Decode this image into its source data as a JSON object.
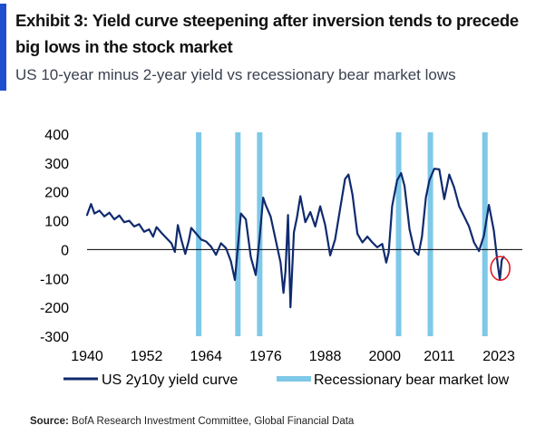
{
  "header": {
    "title_line1": "Exhibit 3: Yield curve steepening after inversion tends to precede",
    "title_line2": "big lows in the stock market",
    "subtitle": "US 10-year minus 2-year yield vs recessionary bear market lows"
  },
  "footer": {
    "source_label": "Source:",
    "source_text": "BofA Research Investment Committee, Global Financial Data"
  },
  "colors": {
    "accent": "#1f4fcf",
    "series_line": "#0f2a6e",
    "bear_lows": "#7ec8e8",
    "highlight_circle": "#e11b22"
  },
  "chart_data": {
    "type": "line",
    "title": "Exhibit 3: Yield curve steepening after inversion tends to precede big lows in the stock market",
    "subtitle": "US 10-year minus 2-year yield vs recessionary bear market lows",
    "xlabel": "",
    "ylabel": "",
    "xlim": [
      1940,
      2025
    ],
    "ylim": [
      -300,
      400
    ],
    "x_ticks": [
      1940,
      1952,
      1964,
      1976,
      1988,
      2000,
      2011,
      2023
    ],
    "y_ticks": [
      400,
      300,
      200,
      100,
      0,
      -100,
      -200,
      -300
    ],
    "grid": false,
    "legend_position": "bottom",
    "series": [
      {
        "name": "US 2y10y yield curve",
        "kind": "line",
        "points": [
          [
            1940,
            120
          ],
          [
            1940.8,
            158
          ],
          [
            1941.5,
            125
          ],
          [
            1942.5,
            135
          ],
          [
            1943.5,
            115
          ],
          [
            1944.5,
            128
          ],
          [
            1945.5,
            105
          ],
          [
            1946.5,
            118
          ],
          [
            1947.5,
            95
          ],
          [
            1948.5,
            100
          ],
          [
            1949.5,
            80
          ],
          [
            1950.5,
            88
          ],
          [
            1951.5,
            62
          ],
          [
            1952.5,
            70
          ],
          [
            1953.3,
            45
          ],
          [
            1954,
            78
          ],
          [
            1955,
            58
          ],
          [
            1956,
            40
          ],
          [
            1957,
            22
          ],
          [
            1957.7,
            -8
          ],
          [
            1958.3,
            85
          ],
          [
            1959,
            35
          ],
          [
            1959.8,
            -15
          ],
          [
            1960.5,
            30
          ],
          [
            1961,
            75
          ],
          [
            1962,
            55
          ],
          [
            1963,
            35
          ],
          [
            1964,
            28
          ],
          [
            1965,
            10
          ],
          [
            1966,
            -18
          ],
          [
            1967,
            22
          ],
          [
            1968,
            5
          ],
          [
            1969,
            -40
          ],
          [
            1969.8,
            -105
          ],
          [
            1970.5,
            30
          ],
          [
            1971,
            125
          ],
          [
            1972,
            105
          ],
          [
            1973,
            -25
          ],
          [
            1974,
            -88
          ],
          [
            1974.8,
            45
          ],
          [
            1975.5,
            180
          ],
          [
            1976,
            155
          ],
          [
            1977,
            115
          ],
          [
            1978,
            35
          ],
          [
            1979,
            -45
          ],
          [
            1979.6,
            -150
          ],
          [
            1980,
            -75
          ],
          [
            1980.5,
            120
          ],
          [
            1981,
            -200
          ],
          [
            1981.7,
            60
          ],
          [
            1982.3,
            110
          ],
          [
            1983,
            185
          ],
          [
            1984,
            95
          ],
          [
            1985,
            130
          ],
          [
            1986,
            80
          ],
          [
            1987,
            150
          ],
          [
            1988,
            85
          ],
          [
            1989,
            -20
          ],
          [
            1990,
            35
          ],
          [
            1991,
            140
          ],
          [
            1992,
            245
          ],
          [
            1992.7,
            260
          ],
          [
            1993.5,
            190
          ],
          [
            1994.5,
            55
          ],
          [
            1995.5,
            25
          ],
          [
            1996.5,
            45
          ],
          [
            1997.5,
            25
          ],
          [
            1998.5,
            8
          ],
          [
            1999.5,
            20
          ],
          [
            2000.3,
            -45
          ],
          [
            2000.8,
            -10
          ],
          [
            2001.5,
            150
          ],
          [
            2002.5,
            240
          ],
          [
            2003.3,
            265
          ],
          [
            2004,
            220
          ],
          [
            2005,
            70
          ],
          [
            2006,
            -5
          ],
          [
            2006.8,
            -18
          ],
          [
            2007.5,
            45
          ],
          [
            2008.3,
            180
          ],
          [
            2009,
            240
          ],
          [
            2010,
            280
          ],
          [
            2011,
            278
          ],
          [
            2012,
            175
          ],
          [
            2013,
            260
          ],
          [
            2014,
            215
          ],
          [
            2015,
            150
          ],
          [
            2016,
            115
          ],
          [
            2017,
            80
          ],
          [
            2018,
            25
          ],
          [
            2019,
            -5
          ],
          [
            2020,
            48
          ],
          [
            2021,
            155
          ],
          [
            2022,
            65
          ],
          [
            2022.8,
            -55
          ],
          [
            2023.2,
            -105
          ],
          [
            2023.6,
            -35
          ],
          [
            2024,
            -25
          ]
        ]
      },
      {
        "name": "Recessionary bear market low",
        "kind": "vertical-bars",
        "dates": [
          1962.5,
          1970.4,
          1974.8,
          2002.8,
          2009.2,
          2020.2
        ]
      }
    ],
    "annotations": [
      {
        "type": "circle",
        "x": 2023.3,
        "y": -65,
        "note": "current yield curve steepening from inversion"
      }
    ]
  }
}
